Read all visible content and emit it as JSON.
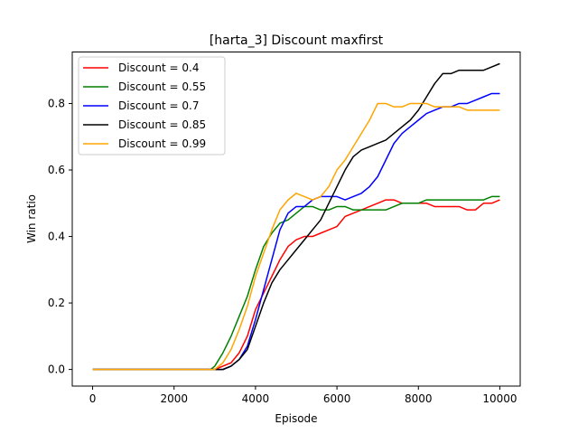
{
  "chart_data": {
    "type": "line",
    "title": "[harta_3] Discount  maxfirst",
    "xlabel": "Episode",
    "ylabel": "Win ratio",
    "xlim": [
      -500,
      10500
    ],
    "ylim": [
      -0.05,
      0.955
    ],
    "x_ticks": [
      0,
      2000,
      4000,
      6000,
      8000,
      10000
    ],
    "y_ticks": [
      0.0,
      0.2,
      0.4,
      0.6,
      0.8
    ],
    "x_tick_labels": [
      "0",
      "2000",
      "4000",
      "6000",
      "8000",
      "10000"
    ],
    "y_tick_labels": [
      "0.0",
      "0.2",
      "0.4",
      "0.6",
      "0.8"
    ],
    "grid": false,
    "legend_location": "upper left",
    "series": [
      {
        "name": "Discount = 0.4",
        "color": "#ff0000",
        "points": [
          [
            0,
            0.0
          ],
          [
            2500,
            0.0
          ],
          [
            3000,
            0.0
          ],
          [
            3200,
            0.01
          ],
          [
            3400,
            0.02
          ],
          [
            3600,
            0.05
          ],
          [
            3800,
            0.1
          ],
          [
            4000,
            0.18
          ],
          [
            4200,
            0.23
          ],
          [
            4400,
            0.28
          ],
          [
            4600,
            0.33
          ],
          [
            4800,
            0.37
          ],
          [
            5000,
            0.39
          ],
          [
            5200,
            0.4
          ],
          [
            5400,
            0.4
          ],
          [
            5600,
            0.41
          ],
          [
            5800,
            0.42
          ],
          [
            6000,
            0.43
          ],
          [
            6200,
            0.46
          ],
          [
            6400,
            0.47
          ],
          [
            6600,
            0.48
          ],
          [
            6800,
            0.49
          ],
          [
            7000,
            0.5
          ],
          [
            7200,
            0.51
          ],
          [
            7400,
            0.51
          ],
          [
            7600,
            0.5
          ],
          [
            7800,
            0.5
          ],
          [
            8000,
            0.5
          ],
          [
            8200,
            0.5
          ],
          [
            8400,
            0.49
          ],
          [
            8600,
            0.49
          ],
          [
            8800,
            0.49
          ],
          [
            9000,
            0.49
          ],
          [
            9200,
            0.48
          ],
          [
            9400,
            0.48
          ],
          [
            9600,
            0.5
          ],
          [
            9800,
            0.5
          ],
          [
            10000,
            0.51
          ]
        ]
      },
      {
        "name": "Discount = 0.55",
        "color": "#008000",
        "points": [
          [
            0,
            0.0
          ],
          [
            2500,
            0.0
          ],
          [
            2900,
            0.0
          ],
          [
            3000,
            0.01
          ],
          [
            3200,
            0.05
          ],
          [
            3400,
            0.1
          ],
          [
            3600,
            0.16
          ],
          [
            3800,
            0.22
          ],
          [
            4000,
            0.3
          ],
          [
            4200,
            0.37
          ],
          [
            4400,
            0.41
          ],
          [
            4600,
            0.44
          ],
          [
            4800,
            0.45
          ],
          [
            5000,
            0.47
          ],
          [
            5200,
            0.49
          ],
          [
            5400,
            0.49
          ],
          [
            5600,
            0.48
          ],
          [
            5800,
            0.48
          ],
          [
            6000,
            0.49
          ],
          [
            6200,
            0.49
          ],
          [
            6400,
            0.48
          ],
          [
            6600,
            0.48
          ],
          [
            6800,
            0.48
          ],
          [
            7000,
            0.48
          ],
          [
            7200,
            0.48
          ],
          [
            7400,
            0.49
          ],
          [
            7600,
            0.5
          ],
          [
            7800,
            0.5
          ],
          [
            8000,
            0.5
          ],
          [
            8200,
            0.51
          ],
          [
            8400,
            0.51
          ],
          [
            8600,
            0.51
          ],
          [
            8800,
            0.51
          ],
          [
            9000,
            0.51
          ],
          [
            9200,
            0.51
          ],
          [
            9400,
            0.51
          ],
          [
            9600,
            0.51
          ],
          [
            9800,
            0.52
          ],
          [
            10000,
            0.52
          ]
        ]
      },
      {
        "name": "Discount = 0.7",
        "color": "#0000ff",
        "points": [
          [
            0,
            0.0
          ],
          [
            2500,
            0.0
          ],
          [
            3200,
            0.0
          ],
          [
            3400,
            0.01
          ],
          [
            3600,
            0.03
          ],
          [
            3800,
            0.07
          ],
          [
            4000,
            0.15
          ],
          [
            4200,
            0.24
          ],
          [
            4400,
            0.33
          ],
          [
            4600,
            0.42
          ],
          [
            4800,
            0.47
          ],
          [
            5000,
            0.49
          ],
          [
            5200,
            0.49
          ],
          [
            5400,
            0.51
          ],
          [
            5600,
            0.52
          ],
          [
            5800,
            0.52
          ],
          [
            6000,
            0.52
          ],
          [
            6200,
            0.51
          ],
          [
            6400,
            0.52
          ],
          [
            6600,
            0.53
          ],
          [
            6800,
            0.55
          ],
          [
            7000,
            0.58
          ],
          [
            7200,
            0.63
          ],
          [
            7400,
            0.68
          ],
          [
            7600,
            0.71
          ],
          [
            7800,
            0.73
          ],
          [
            8000,
            0.75
          ],
          [
            8200,
            0.77
          ],
          [
            8400,
            0.78
          ],
          [
            8600,
            0.79
          ],
          [
            8800,
            0.79
          ],
          [
            9000,
            0.8
          ],
          [
            9200,
            0.8
          ],
          [
            9400,
            0.81
          ],
          [
            9600,
            0.82
          ],
          [
            9800,
            0.83
          ],
          [
            10000,
            0.83
          ]
        ]
      },
      {
        "name": "Discount = 0.85",
        "color": "#000000",
        "points": [
          [
            0,
            0.0
          ],
          [
            2500,
            0.0
          ],
          [
            3200,
            0.0
          ],
          [
            3400,
            0.01
          ],
          [
            3600,
            0.03
          ],
          [
            3800,
            0.06
          ],
          [
            4000,
            0.13
          ],
          [
            4200,
            0.2
          ],
          [
            4400,
            0.26
          ],
          [
            4600,
            0.3
          ],
          [
            4800,
            0.33
          ],
          [
            5000,
            0.36
          ],
          [
            5200,
            0.39
          ],
          [
            5400,
            0.42
          ],
          [
            5600,
            0.45
          ],
          [
            5800,
            0.5
          ],
          [
            6000,
            0.55
          ],
          [
            6200,
            0.6
          ],
          [
            6400,
            0.64
          ],
          [
            6600,
            0.66
          ],
          [
            6800,
            0.67
          ],
          [
            7000,
            0.68
          ],
          [
            7200,
            0.69
          ],
          [
            7400,
            0.71
          ],
          [
            7600,
            0.73
          ],
          [
            7800,
            0.75
          ],
          [
            8000,
            0.78
          ],
          [
            8200,
            0.82
          ],
          [
            8400,
            0.86
          ],
          [
            8600,
            0.89
          ],
          [
            8800,
            0.89
          ],
          [
            9000,
            0.9
          ],
          [
            9200,
            0.9
          ],
          [
            9400,
            0.9
          ],
          [
            9600,
            0.9
          ],
          [
            9800,
            0.91
          ],
          [
            10000,
            0.92
          ]
        ]
      },
      {
        "name": "Discount = 0.99",
        "color": "#ffa500",
        "points": [
          [
            0,
            0.0
          ],
          [
            2500,
            0.0
          ],
          [
            3000,
            0.0
          ],
          [
            3200,
            0.02
          ],
          [
            3400,
            0.06
          ],
          [
            3600,
            0.12
          ],
          [
            3800,
            0.19
          ],
          [
            4000,
            0.28
          ],
          [
            4200,
            0.35
          ],
          [
            4400,
            0.42
          ],
          [
            4600,
            0.48
          ],
          [
            4800,
            0.51
          ],
          [
            5000,
            0.53
          ],
          [
            5200,
            0.52
          ],
          [
            5400,
            0.51
          ],
          [
            5600,
            0.52
          ],
          [
            5800,
            0.55
          ],
          [
            6000,
            0.6
          ],
          [
            6200,
            0.63
          ],
          [
            6400,
            0.67
          ],
          [
            6600,
            0.71
          ],
          [
            6800,
            0.75
          ],
          [
            7000,
            0.8
          ],
          [
            7200,
            0.8
          ],
          [
            7400,
            0.79
          ],
          [
            7600,
            0.79
          ],
          [
            7800,
            0.8
          ],
          [
            8000,
            0.8
          ],
          [
            8200,
            0.8
          ],
          [
            8400,
            0.79
          ],
          [
            8600,
            0.79
          ],
          [
            8800,
            0.79
          ],
          [
            9000,
            0.79
          ],
          [
            9200,
            0.78
          ],
          [
            9400,
            0.78
          ],
          [
            9600,
            0.78
          ],
          [
            9800,
            0.78
          ],
          [
            10000,
            0.78
          ]
        ]
      }
    ]
  }
}
